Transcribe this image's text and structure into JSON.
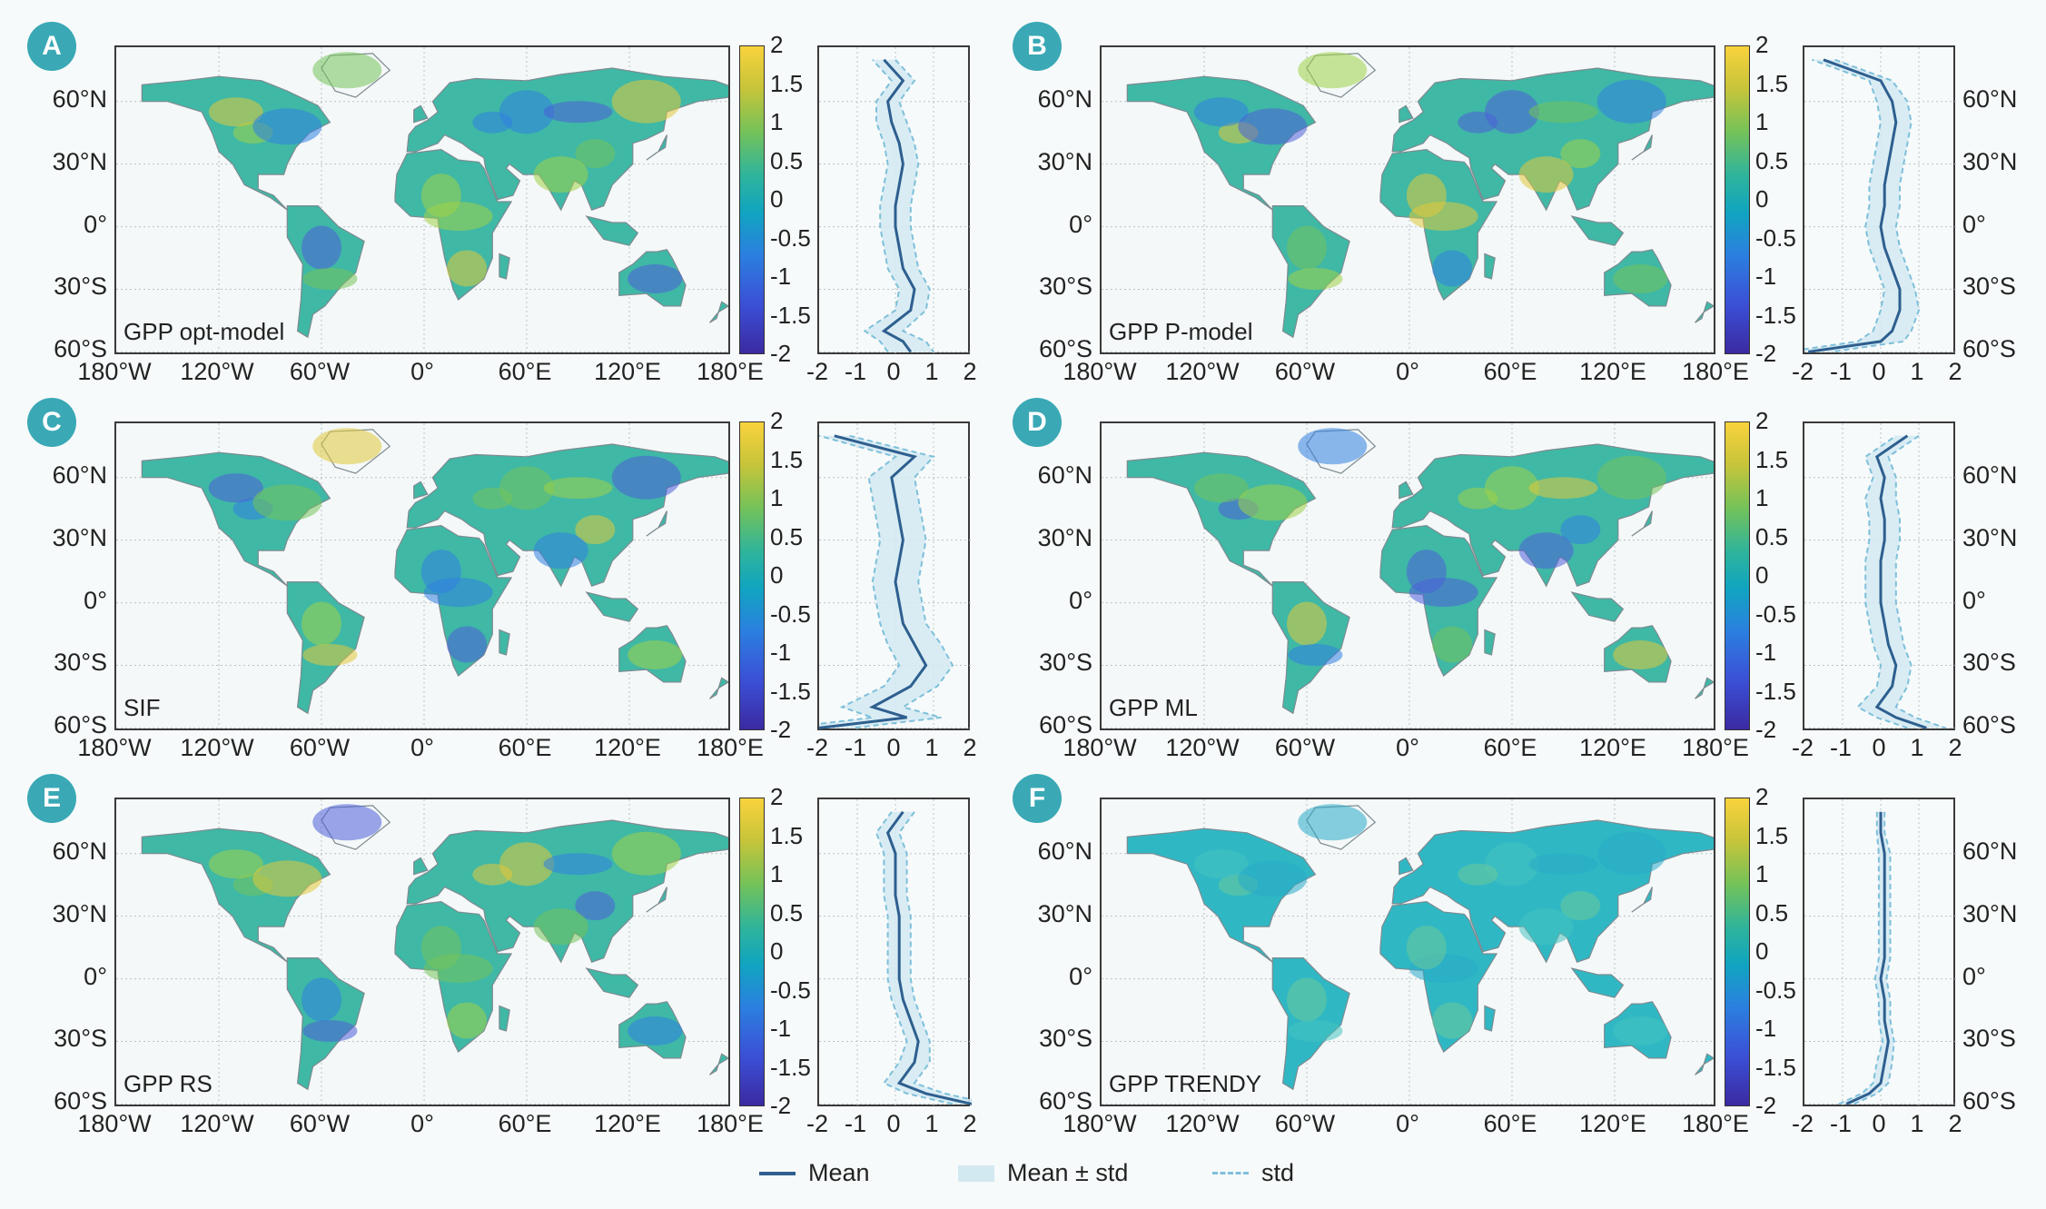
{
  "panels": [
    {
      "letter": "A",
      "label": "GPP opt-model"
    },
    {
      "letter": "B",
      "label": "GPP P-model"
    },
    {
      "letter": "C",
      "label": "SIF"
    },
    {
      "letter": "D",
      "label": "GPP ML"
    },
    {
      "letter": "E",
      "label": "GPP RS"
    },
    {
      "letter": "F",
      "label": "GPP TRENDY"
    }
  ],
  "map_x_ticks": [
    "180°W",
    "120°W",
    "60°W",
    "0°",
    "60°E",
    "120°E",
    "180°E"
  ],
  "map_y_ticks": [
    "60°N",
    "30°N",
    "0°",
    "30°S",
    "60°S"
  ],
  "colorbar_ticks": [
    "2",
    "1.5",
    "1",
    "0.5",
    "0",
    "-0.5",
    "-1",
    "-1.5",
    "-2"
  ],
  "profile_x_ticks": [
    "-2",
    "-1",
    "0",
    "1",
    "2"
  ],
  "legend": {
    "mean": "Mean",
    "band": "Mean ± std",
    "std": "std"
  },
  "colors": {
    "mean": "#2e5f8f",
    "band": "#d3e9f2",
    "std": "#7ec0da",
    "badge": "#3aa8b5"
  },
  "chart_data": {
    "type": "line",
    "description_units": "profile x = standardized value, y = latitude (degrees)",
    "latitude": [
      80,
      70,
      60,
      50,
      40,
      30,
      20,
      10,
      0,
      -10,
      -20,
      -30,
      -40,
      -50,
      -55,
      -60
    ],
    "xlim": [
      -2,
      2
    ],
    "ylim": [
      -62,
      86
    ],
    "series": [
      {
        "panel": "A",
        "mean": [
          -0.3,
          0.2,
          -0.2,
          -0.1,
          0.1,
          0.2,
          0.1,
          0.0,
          0.0,
          0.1,
          0.2,
          0.5,
          0.4,
          -0.3,
          0.2,
          0.4
        ],
        "std": [
          0.3,
          0.3,
          0.3,
          0.4,
          0.4,
          0.4,
          0.4,
          0.4,
          0.4,
          0.4,
          0.4,
          0.4,
          0.4,
          0.5,
          0.6,
          0.6
        ]
      },
      {
        "panel": "B",
        "mean": [
          -1.5,
          0.0,
          0.3,
          0.4,
          0.3,
          0.2,
          0.1,
          0.1,
          0.0,
          0.1,
          0.3,
          0.5,
          0.5,
          0.3,
          0.0,
          -1.9
        ],
        "std": [
          0.3,
          0.3,
          0.4,
          0.4,
          0.4,
          0.4,
          0.4,
          0.4,
          0.4,
          0.4,
          0.4,
          0.4,
          0.5,
          0.5,
          0.6,
          0.6
        ]
      },
      {
        "panel": "C",
        "mean": [
          -1.6,
          0.5,
          -0.1,
          0.0,
          0.1,
          0.2,
          0.1,
          0.0,
          0.1,
          0.2,
          0.5,
          0.8,
          0.4,
          -0.6,
          0.3,
          -2.0
        ],
        "std": [
          0.4,
          0.5,
          0.6,
          0.6,
          0.6,
          0.6,
          0.6,
          0.6,
          0.6,
          0.6,
          0.7,
          0.7,
          0.7,
          0.8,
          0.9,
          0.9
        ]
      },
      {
        "panel": "D",
        "mean": [
          0.7,
          -0.1,
          0.1,
          0.0,
          0.1,
          0.1,
          0.0,
          0.0,
          0.0,
          0.1,
          0.2,
          0.4,
          0.3,
          -0.1,
          0.4,
          1.2
        ],
        "std": [
          0.3,
          0.3,
          0.3,
          0.4,
          0.4,
          0.4,
          0.4,
          0.4,
          0.4,
          0.4,
          0.4,
          0.4,
          0.4,
          0.5,
          0.5,
          0.5
        ]
      },
      {
        "panel": "E",
        "mean": [
          0.2,
          -0.2,
          0.0,
          0.0,
          0.0,
          0.1,
          0.1,
          0.1,
          0.1,
          0.2,
          0.4,
          0.6,
          0.5,
          0.1,
          0.8,
          2.0
        ],
        "std": [
          0.3,
          0.3,
          0.3,
          0.3,
          0.3,
          0.3,
          0.3,
          0.3,
          0.3,
          0.3,
          0.3,
          0.3,
          0.4,
          0.4,
          0.5,
          0.5
        ]
      },
      {
        "panel": "F",
        "mean": [
          0.0,
          0.0,
          0.1,
          0.1,
          0.1,
          0.1,
          0.1,
          0.1,
          0.0,
          0.1,
          0.1,
          0.2,
          0.1,
          0.0,
          -0.3,
          -0.9
        ],
        "std": [
          0.1,
          0.1,
          0.15,
          0.15,
          0.15,
          0.15,
          0.15,
          0.15,
          0.15,
          0.15,
          0.15,
          0.15,
          0.2,
          0.2,
          0.2,
          0.2
        ]
      }
    ]
  }
}
